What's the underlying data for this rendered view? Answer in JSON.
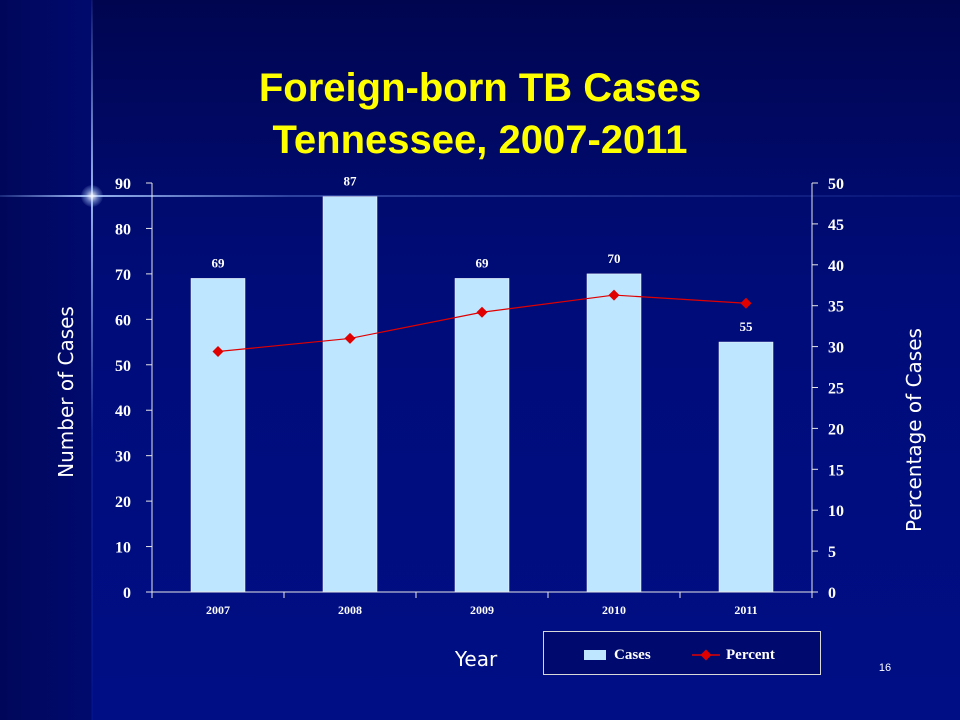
{
  "slide": {
    "title_line1": "Foreign-born TB Cases",
    "title_line2": "Tennessee, 2007-2011",
    "page_number": "16"
  },
  "colors": {
    "background": "#000a6e",
    "title": "#ffff00",
    "bar": "#bfe6ff",
    "line": "#e00000",
    "text": "#ffffff"
  },
  "chart_data": {
    "type": "bar",
    "categories": [
      "2007",
      "2008",
      "2009",
      "2010",
      "2011"
    ],
    "series": [
      {
        "name": "Cases",
        "type": "bar",
        "axis": "left",
        "values": [
          69,
          87,
          69,
          70,
          55
        ],
        "labels": [
          "69",
          "87",
          "69",
          "70",
          "55"
        ]
      },
      {
        "name": "Percent",
        "type": "line",
        "axis": "right",
        "values": [
          29.4,
          31.0,
          34.2,
          36.3,
          35.3
        ]
      }
    ],
    "xlabel": "Year",
    "ylabel": "Number of Cases",
    "y2label": "Percentage of Cases",
    "ylim": [
      0,
      90
    ],
    "y2lim": [
      0,
      50
    ],
    "yticks": [
      "0",
      "10",
      "20",
      "30",
      "40",
      "50",
      "60",
      "70",
      "80",
      "90"
    ],
    "y2ticks": [
      "0",
      "5",
      "10",
      "15",
      "20",
      "25",
      "30",
      "35",
      "40",
      "45",
      "50"
    ],
    "grid": false,
    "legend": {
      "position": "bottom-right",
      "items": [
        {
          "label": "Cases",
          "swatch": "bar"
        },
        {
          "label": "Percent",
          "swatch": "line-diamond"
        }
      ]
    }
  }
}
